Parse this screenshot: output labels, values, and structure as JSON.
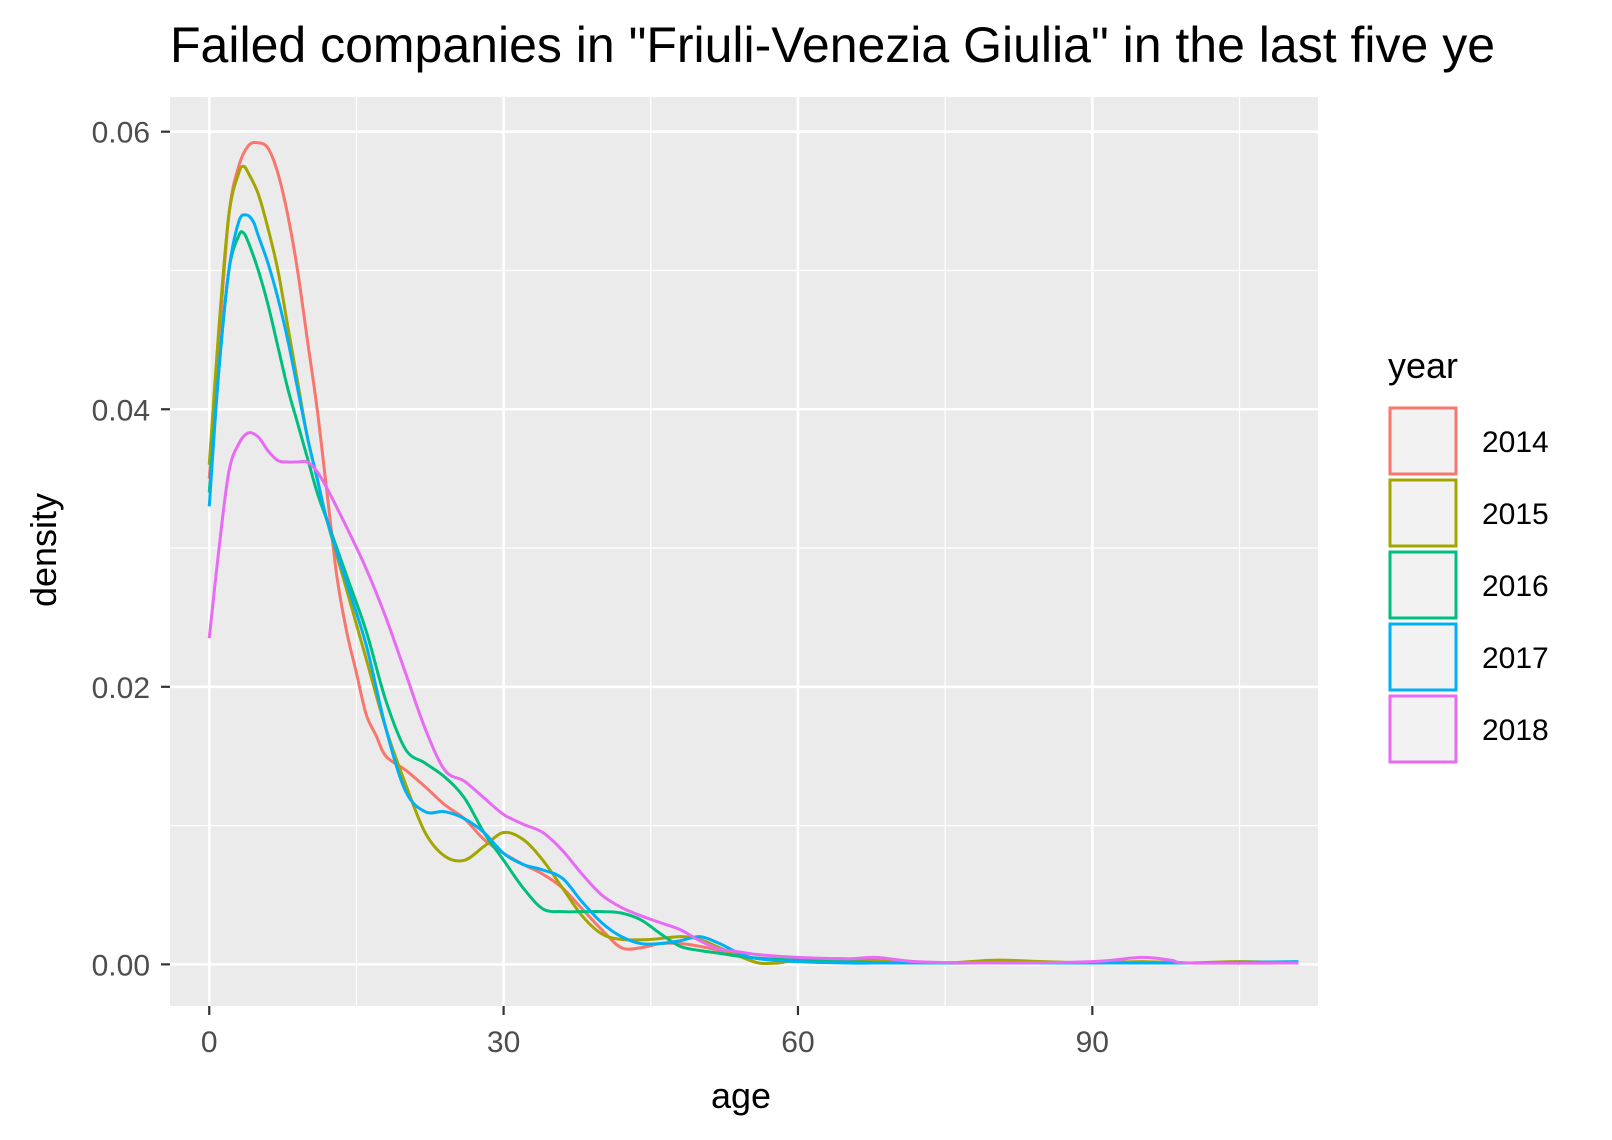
{
  "chart_data": {
    "type": "line",
    "title": "Failed companies in \"Friuli-Venezia Giulia\" in the last five ye",
    "xlabel": "age",
    "ylabel": "density",
    "xlim": [
      -4,
      113
    ],
    "ylim": [
      -0.003,
      0.0625
    ],
    "x_ticks": [
      0,
      30,
      60,
      90
    ],
    "x_tick_labels": [
      "0",
      "30",
      "60",
      "90"
    ],
    "y_ticks": [
      0,
      0.02,
      0.04,
      0.06
    ],
    "y_tick_labels": [
      "0.00",
      "0.02",
      "0.04",
      "0.06"
    ],
    "x_minor_ticks": [
      15,
      45,
      75,
      105
    ],
    "y_minor_ticks": [
      0.01,
      0.03,
      0.05
    ],
    "grid": true,
    "legend": {
      "title": "year",
      "placement": "right"
    },
    "series": [
      {
        "name": "2014",
        "color": "#F8766D",
        "points": [
          [
            0,
            0.035
          ],
          [
            1,
            0.045
          ],
          [
            2,
            0.054
          ],
          [
            3,
            0.0575
          ],
          [
            4,
            0.059
          ],
          [
            5,
            0.0592
          ],
          [
            6,
            0.0588
          ],
          [
            7,
            0.057
          ],
          [
            8,
            0.054
          ],
          [
            9,
            0.05
          ],
          [
            10,
            0.045
          ],
          [
            11,
            0.04
          ],
          [
            12,
            0.034
          ],
          [
            13,
            0.028
          ],
          [
            14,
            0.024
          ],
          [
            15,
            0.021
          ],
          [
            16,
            0.018
          ],
          [
            17,
            0.0165
          ],
          [
            18,
            0.015
          ],
          [
            20,
            0.014
          ],
          [
            22,
            0.0128
          ],
          [
            24,
            0.0115
          ],
          [
            26,
            0.0105
          ],
          [
            28,
            0.009
          ],
          [
            30,
            0.008
          ],
          [
            32,
            0.0072
          ],
          [
            34,
            0.0065
          ],
          [
            36,
            0.0055
          ],
          [
            38,
            0.004
          ],
          [
            40,
            0.0025
          ],
          [
            42,
            0.0012
          ],
          [
            44,
            0.0012
          ],
          [
            46,
            0.0015
          ],
          [
            48,
            0.0015
          ],
          [
            50,
            0.0013
          ],
          [
            52,
            0.001
          ],
          [
            55,
            0.0005
          ],
          [
            60,
            0.0003
          ],
          [
            65,
            0.0003
          ],
          [
            70,
            0.0002
          ],
          [
            75,
            0.0001
          ],
          [
            80,
            0.0001
          ],
          [
            90,
            0.0001
          ],
          [
            100,
            0.0001
          ],
          [
            111,
            0.0001
          ]
        ]
      },
      {
        "name": "2015",
        "color": "#A3A500",
        "points": [
          [
            0,
            0.036
          ],
          [
            1,
            0.046
          ],
          [
            2,
            0.054
          ],
          [
            3,
            0.057
          ],
          [
            3.5,
            0.0575
          ],
          [
            4,
            0.057
          ],
          [
            5,
            0.0555
          ],
          [
            6,
            0.053
          ],
          [
            7,
            0.05
          ],
          [
            8,
            0.046
          ],
          [
            9,
            0.042
          ],
          [
            10,
            0.038
          ],
          [
            11,
            0.035
          ],
          [
            12,
            0.032
          ],
          [
            14,
            0.027
          ],
          [
            16,
            0.022
          ],
          [
            18,
            0.017
          ],
          [
            20,
            0.013
          ],
          [
            22,
            0.0095
          ],
          [
            24,
            0.0078
          ],
          [
            26,
            0.0075
          ],
          [
            28,
            0.0085
          ],
          [
            30,
            0.0095
          ],
          [
            32,
            0.009
          ],
          [
            34,
            0.0075
          ],
          [
            36,
            0.0055
          ],
          [
            38,
            0.0035
          ],
          [
            40,
            0.0022
          ],
          [
            42,
            0.0018
          ],
          [
            45,
            0.0018
          ],
          [
            48,
            0.002
          ],
          [
            50,
            0.0018
          ],
          [
            52,
            0.0012
          ],
          [
            54,
            0.0006
          ],
          [
            56,
            0.0001
          ],
          [
            58,
            0.0001
          ],
          [
            60,
            0.0003
          ],
          [
            65,
            0.0004
          ],
          [
            70,
            0.0002
          ],
          [
            75,
            0.0001
          ],
          [
            80,
            0.0003
          ],
          [
            85,
            0.0002
          ],
          [
            90,
            0.0001
          ],
          [
            95,
            0.0002
          ],
          [
            100,
            0.0001
          ],
          [
            105,
            0.0002
          ],
          [
            111,
            0.0001
          ]
        ]
      },
      {
        "name": "2016",
        "color": "#00BF7D",
        "points": [
          [
            0,
            0.034
          ],
          [
            1,
            0.043
          ],
          [
            2,
            0.05
          ],
          [
            3,
            0.0525
          ],
          [
            3.5,
            0.0527
          ],
          [
            4,
            0.052
          ],
          [
            5,
            0.05
          ],
          [
            6,
            0.0475
          ],
          [
            7,
            0.0445
          ],
          [
            8,
            0.0415
          ],
          [
            9,
            0.039
          ],
          [
            10,
            0.0365
          ],
          [
            11,
            0.034
          ],
          [
            12,
            0.032
          ],
          [
            14,
            0.028
          ],
          [
            16,
            0.024
          ],
          [
            18,
            0.019
          ],
          [
            20,
            0.0155
          ],
          [
            22,
            0.0145
          ],
          [
            24,
            0.0135
          ],
          [
            26,
            0.012
          ],
          [
            28,
            0.0095
          ],
          [
            30,
            0.0075
          ],
          [
            32,
            0.0055
          ],
          [
            34,
            0.004
          ],
          [
            36,
            0.0038
          ],
          [
            38,
            0.0038
          ],
          [
            40,
            0.0038
          ],
          [
            42,
            0.0037
          ],
          [
            44,
            0.0032
          ],
          [
            46,
            0.0022
          ],
          [
            48,
            0.0013
          ],
          [
            50,
            0.001
          ],
          [
            52,
            0.0008
          ],
          [
            55,
            0.0005
          ],
          [
            60,
            0.0003
          ],
          [
            65,
            0.0002
          ],
          [
            70,
            0.0001
          ],
          [
            80,
            0.0001
          ],
          [
            90,
            0.0001
          ],
          [
            100,
            0.0001
          ],
          [
            111,
            0.0001
          ]
        ]
      },
      {
        "name": "2017",
        "color": "#00B0F6",
        "points": [
          [
            0,
            0.033
          ],
          [
            1,
            0.043
          ],
          [
            2,
            0.05
          ],
          [
            3,
            0.0535
          ],
          [
            3.8,
            0.054
          ],
          [
            4.5,
            0.0535
          ],
          [
            5,
            0.0525
          ],
          [
            6,
            0.0505
          ],
          [
            7,
            0.048
          ],
          [
            8,
            0.045
          ],
          [
            9,
            0.0415
          ],
          [
            10,
            0.038
          ],
          [
            11,
            0.035
          ],
          [
            12,
            0.032
          ],
          [
            14,
            0.0275
          ],
          [
            16,
            0.023
          ],
          [
            18,
            0.017
          ],
          [
            20,
            0.0125
          ],
          [
            22,
            0.011
          ],
          [
            24,
            0.011
          ],
          [
            26,
            0.0105
          ],
          [
            28,
            0.0095
          ],
          [
            30,
            0.008
          ],
          [
            32,
            0.0072
          ],
          [
            34,
            0.0068
          ],
          [
            36,
            0.0062
          ],
          [
            38,
            0.0045
          ],
          [
            40,
            0.003
          ],
          [
            42,
            0.002
          ],
          [
            44,
            0.0015
          ],
          [
            46,
            0.0015
          ],
          [
            48,
            0.0017
          ],
          [
            50,
            0.002
          ],
          [
            52,
            0.0015
          ],
          [
            54,
            0.0008
          ],
          [
            56,
            0.0004
          ],
          [
            60,
            0.0002
          ],
          [
            65,
            0.0001
          ],
          [
            70,
            0.0001
          ],
          [
            80,
            0.0001
          ],
          [
            90,
            0.0001
          ],
          [
            100,
            0.0001
          ],
          [
            111,
            0.0002
          ]
        ]
      },
      {
        "name": "2018",
        "color": "#E76BF3",
        "points": [
          [
            0,
            0.0235
          ],
          [
            1,
            0.03
          ],
          [
            2,
            0.0355
          ],
          [
            3,
            0.0375
          ],
          [
            4,
            0.0383
          ],
          [
            5,
            0.038
          ],
          [
            6,
            0.037
          ],
          [
            7,
            0.0363
          ],
          [
            8,
            0.0362
          ],
          [
            9,
            0.0362
          ],
          [
            10,
            0.0362
          ],
          [
            11,
            0.0355
          ],
          [
            12,
            0.0343
          ],
          [
            14,
            0.0315
          ],
          [
            16,
            0.0285
          ],
          [
            18,
            0.025
          ],
          [
            20,
            0.021
          ],
          [
            22,
            0.017
          ],
          [
            24,
            0.014
          ],
          [
            26,
            0.0132
          ],
          [
            28,
            0.012
          ],
          [
            30,
            0.0108
          ],
          [
            32,
            0.0101
          ],
          [
            34,
            0.0095
          ],
          [
            36,
            0.0082
          ],
          [
            38,
            0.0065
          ],
          [
            40,
            0.005
          ],
          [
            42,
            0.0041
          ],
          [
            44,
            0.0035
          ],
          [
            46,
            0.003
          ],
          [
            48,
            0.0025
          ],
          [
            50,
            0.0017
          ],
          [
            52,
            0.0011
          ],
          [
            54,
            0.0009
          ],
          [
            56,
            0.0007
          ],
          [
            60,
            0.0005
          ],
          [
            65,
            0.0004
          ],
          [
            68,
            0.0005
          ],
          [
            72,
            0.0002
          ],
          [
            80,
            0.0001
          ],
          [
            90,
            0.0002
          ],
          [
            95,
            0.0005
          ],
          [
            98,
            0.0003
          ],
          [
            100,
            0.0001
          ],
          [
            111,
            0.0001
          ]
        ]
      }
    ]
  }
}
